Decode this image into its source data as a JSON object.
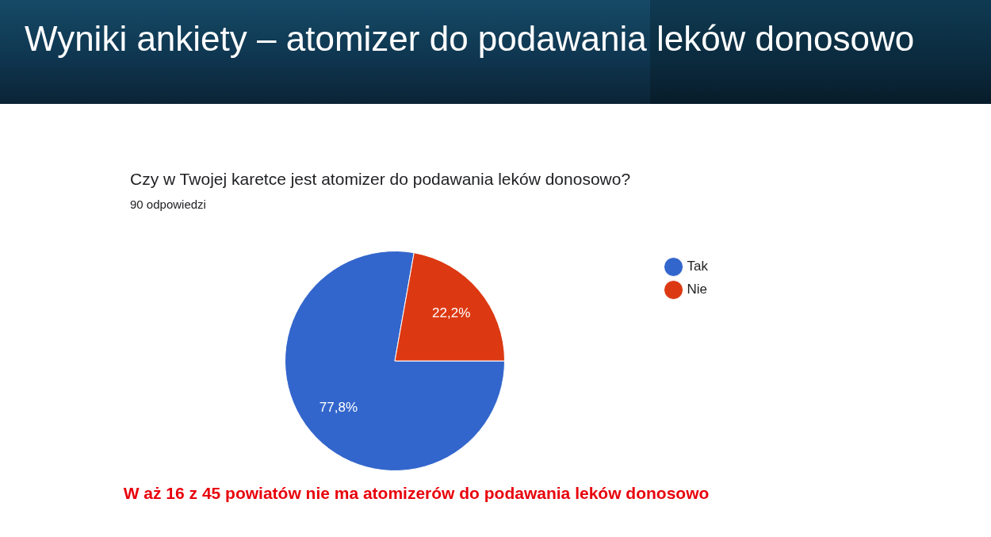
{
  "chart_data": {
    "type": "pie",
    "title": "Czy w Twojej karetce jest atomizer do podawania leków donosowo?",
    "subtitle": "90 odpowiedzi",
    "annotations": [
      "Wyniki ankiety – atomizer do podawania leków donosowo",
      "W aż 16 z 45 powiatów nie ma atomizerów do podawania leków donosowo"
    ],
    "categories": [
      "Tak",
      "Nie"
    ],
    "values": [
      77.8,
      22.2
    ],
    "colors": [
      "#3366cc",
      "#dc3912"
    ],
    "value_labels": [
      "77,8%",
      "22,2%"
    ],
    "legend": "right"
  }
}
